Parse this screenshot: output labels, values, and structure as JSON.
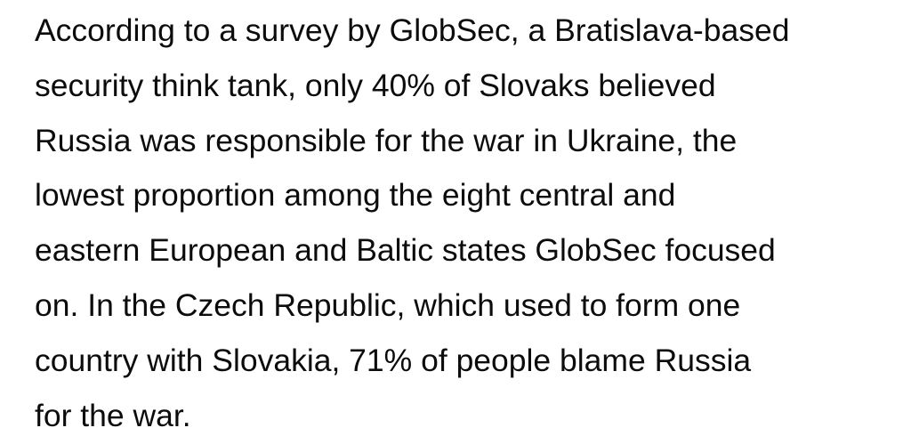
{
  "article": {
    "paragraph_lines": [
      "According to a survey by GlobSec, a Bratislava-based",
      "security think tank, only 40% of Slovaks believed",
      "Russia was responsible for the war in Ukraine, the",
      "lowest proportion among the eight central and",
      "eastern European and Baltic states GlobSec focused",
      "on. In the Czech Republic, which used to form one",
      "country with Slovakia, 71% of people blame Russia",
      "for the war."
    ]
  }
}
